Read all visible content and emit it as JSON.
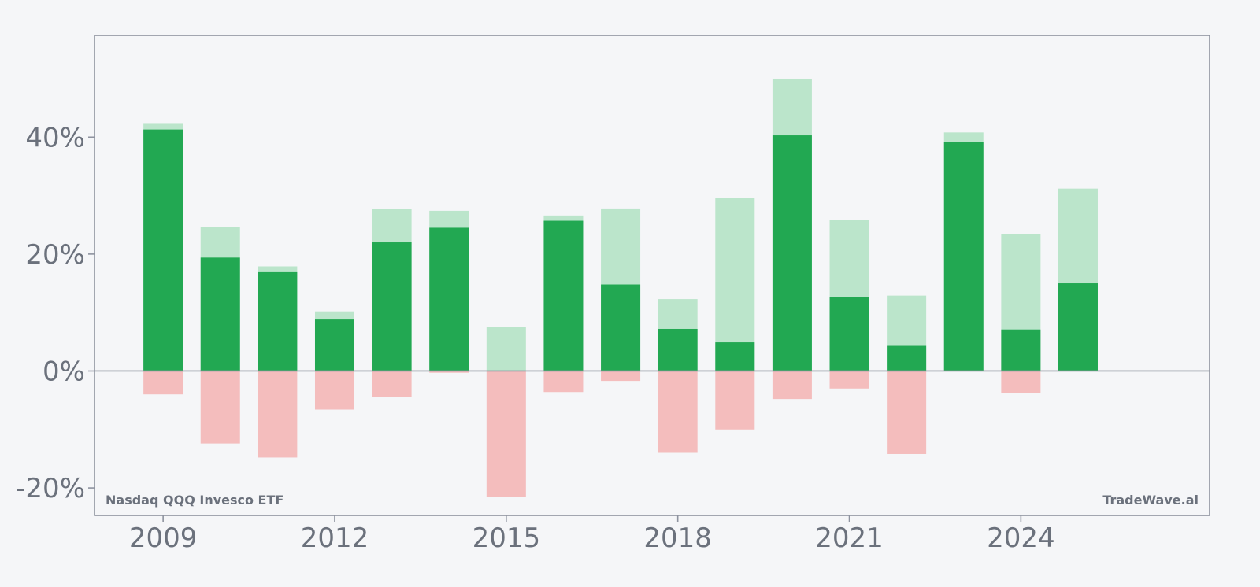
{
  "chart_data": {
    "type": "bar",
    "title": "",
    "xlabel": "",
    "ylabel": "",
    "x": [
      2009,
      2010,
      2011,
      2012,
      2013,
      2014,
      2015,
      2016,
      2017,
      2018,
      2019,
      2020,
      2021,
      2022,
      2023,
      2024,
      2025
    ],
    "series": [
      {
        "kind": "return-positive",
        "values": [
          41.3,
          19.4,
          16.9,
          8.8,
          22.0,
          24.5,
          0.0,
          25.7,
          14.8,
          7.2,
          4.9,
          40.3,
          12.7,
          4.3,
          39.2,
          7.1,
          15.0
        ]
      },
      {
        "kind": "max-high",
        "values": [
          42.4,
          24.6,
          17.9,
          10.2,
          27.7,
          27.4,
          7.6,
          26.6,
          27.8,
          12.3,
          29.6,
          50.0,
          25.9,
          12.9,
          40.8,
          23.4,
          31.2
        ]
      },
      {
        "kind": "max-low",
        "values": [
          -4.0,
          -12.4,
          -14.8,
          -6.6,
          -4.5,
          -0.3,
          -21.6,
          -3.6,
          -1.7,
          -14.0,
          -10.0,
          -4.8,
          -3.0,
          -14.2,
          0.0,
          -3.8,
          0.0
        ]
      }
    ],
    "ylim": [
      -24.7,
      57.4
    ],
    "xlim": [
      2007.8,
      2027.3
    ],
    "yticks": [
      -20,
      0,
      20,
      40
    ],
    "ytick_labels": [
      "-20%",
      "0%",
      "20%",
      "40%"
    ],
    "xticks": [
      2009,
      2012,
      2015,
      2018,
      2021,
      2024
    ],
    "xtick_labels": [
      "2009",
      "2012",
      "2015",
      "2018",
      "2021",
      "2024"
    ],
    "watermark_left": "Nasdaq QQQ Invesco ETF",
    "watermark_right": "TradeWave.ai",
    "grid": false,
    "legend": "none",
    "colors": {
      "return": "#22a852",
      "max_high": "#bbe5cb",
      "max_low": "#f4bdbd",
      "axis": "#8e939f",
      "text": "#6b717c",
      "background": "#f5f6f8"
    }
  }
}
